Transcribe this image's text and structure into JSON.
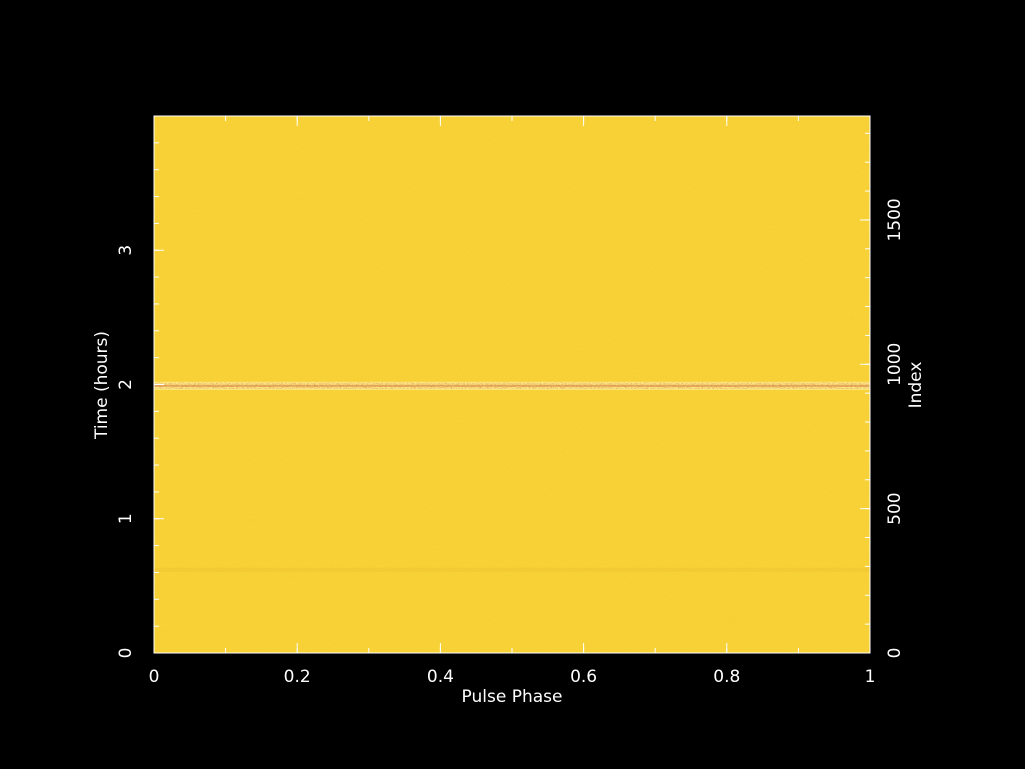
{
  "chart_data": {
    "type": "heatmap",
    "xlabel": "Pulse Phase",
    "ylabel": "Time (hours)",
    "y2label": "Index",
    "xlim": [
      0,
      1
    ],
    "ylim": [
      0,
      4
    ],
    "y2lim": [
      0,
      1860
    ],
    "x_ticks": [
      {
        "value": 0,
        "label": "0"
      },
      {
        "value": 0.2,
        "label": "0.2"
      },
      {
        "value": 0.4,
        "label": "0.4"
      },
      {
        "value": 0.6,
        "label": "0.6"
      },
      {
        "value": 0.8,
        "label": "0.8"
      },
      {
        "value": 1,
        "label": "1"
      }
    ],
    "x_minor_step": 0.1,
    "y_ticks": [
      {
        "value": 0,
        "label": "0"
      },
      {
        "value": 1,
        "label": "1"
      },
      {
        "value": 2,
        "label": "2"
      },
      {
        "value": 3,
        "label": "3"
      }
    ],
    "y_minor_step": 0.2,
    "y2_ticks": [
      {
        "value": 0,
        "label": "0"
      },
      {
        "value": 500,
        "label": "500"
      },
      {
        "value": 1000,
        "label": "1000"
      },
      {
        "value": 1500,
        "label": "1500"
      }
    ],
    "y2_minor_step": 100,
    "background_color": "#fcd535",
    "colors": {
      "frame": "#ffffff",
      "field": "#fcd535",
      "band_light": "#fff2a0",
      "band_dark": "#d9a020",
      "band_red": "#c05020"
    },
    "features": [
      {
        "kind": "noisy-band",
        "time_hours": 1.99,
        "width_hours": 0.06
      },
      {
        "kind": "faint-band",
        "time_hours": 0.62,
        "width_hours": 0.03
      }
    ]
  }
}
